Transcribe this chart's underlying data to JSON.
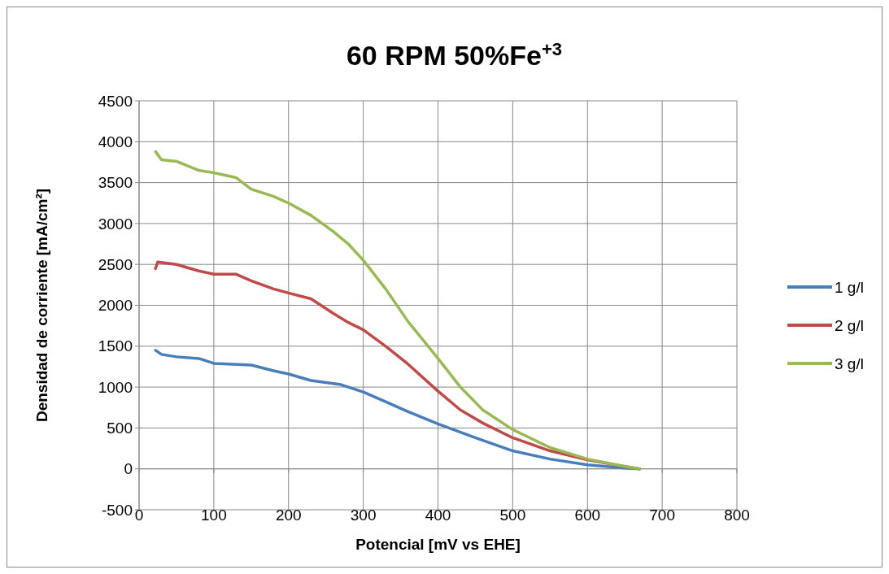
{
  "chart_data": {
    "type": "line",
    "title": "60 RPM 50%Fe$^{+3}$",
    "xlabel": "Potencial [mV vs EHE]",
    "ylabel": "Densidad de corriente [mA/cm²]",
    "xlim": [
      0,
      800
    ],
    "xticks": [
      0,
      100,
      200,
      300,
      400,
      500,
      600,
      700,
      800
    ],
    "ylim": [
      -500,
      4500
    ],
    "yticks": [
      -500,
      0,
      500,
      1000,
      1500,
      2000,
      2500,
      3000,
      3500,
      4000,
      4500
    ],
    "grid": true,
    "legend": "right",
    "marker": "none",
    "line_style": "solid",
    "series": [
      {
        "name": "1 g/l",
        "color": "#4a7ebb",
        "x": [
          22,
          30,
          50,
          80,
          100,
          150,
          180,
          200,
          230,
          270,
          300,
          330,
          360,
          400,
          450,
          500,
          550,
          600,
          650,
          670
        ],
        "values": [
          1450,
          1400,
          1370,
          1350,
          1290,
          1270,
          1200,
          1160,
          1080,
          1030,
          940,
          820,
          700,
          550,
          380,
          220,
          120,
          50,
          10,
          0
        ]
      },
      {
        "name": "2 g/l",
        "color": "#be4b48",
        "x": [
          22,
          25,
          50,
          80,
          100,
          130,
          150,
          180,
          200,
          230,
          260,
          280,
          300,
          330,
          360,
          400,
          430,
          460,
          500,
          550,
          600,
          650,
          670
        ],
        "values": [
          2450,
          2530,
          2500,
          2420,
          2380,
          2380,
          2300,
          2200,
          2150,
          2080,
          1900,
          1790,
          1700,
          1500,
          1280,
          950,
          720,
          560,
          380,
          220,
          110,
          30,
          0
        ]
      },
      {
        "name": "3 g/l",
        "color": "#98b954",
        "x": [
          22,
          30,
          50,
          80,
          100,
          130,
          150,
          180,
          200,
          230,
          260,
          280,
          300,
          330,
          360,
          400,
          430,
          460,
          500,
          550,
          600,
          650,
          670
        ],
        "values": [
          3880,
          3780,
          3760,
          3650,
          3620,
          3560,
          3420,
          3330,
          3250,
          3100,
          2900,
          2750,
          2550,
          2200,
          1800,
          1350,
          1000,
          720,
          480,
          260,
          120,
          30,
          0
        ]
      }
    ]
  }
}
